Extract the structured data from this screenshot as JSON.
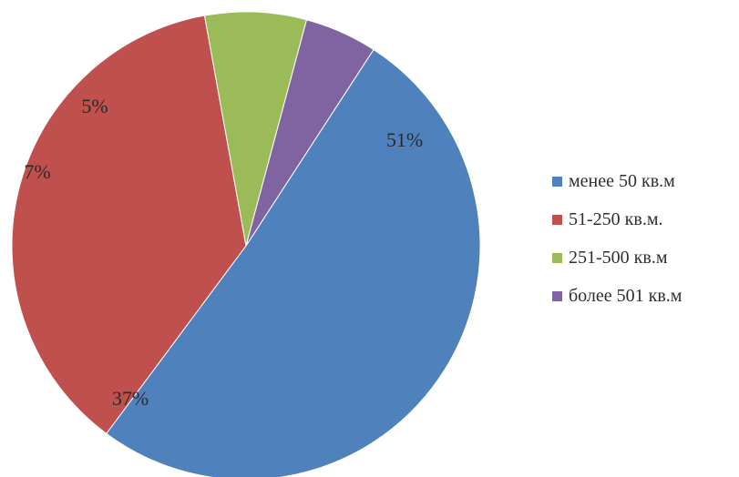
{
  "chart_data": {
    "type": "pie",
    "title": "",
    "categories": [
      "менее 50 кв.м",
      "51-250 кв.м.",
      "251-500 кв.м",
      "более 501 кв.м"
    ],
    "values": [
      51,
      37,
      7,
      5
    ],
    "labels": [
      "51%",
      "37%",
      "7%",
      "5%"
    ],
    "colors": [
      "#4f81bd",
      "#c0504d",
      "#9bbb59",
      "#8064a2"
    ],
    "start_angle_deg": -57,
    "direction": "clockwise",
    "legend_position": "right"
  }
}
